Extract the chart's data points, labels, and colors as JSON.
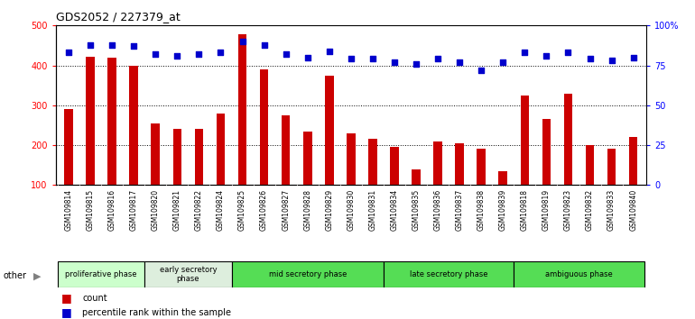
{
  "title": "GDS2052 / 227379_at",
  "samples": [
    "GSM109814",
    "GSM109815",
    "GSM109816",
    "GSM109817",
    "GSM109820",
    "GSM109821",
    "GSM109822",
    "GSM109824",
    "GSM109825",
    "GSM109826",
    "GSM109827",
    "GSM109828",
    "GSM109829",
    "GSM109830",
    "GSM109831",
    "GSM109834",
    "GSM109835",
    "GSM109836",
    "GSM109837",
    "GSM109838",
    "GSM109839",
    "GSM109818",
    "GSM109819",
    "GSM109823",
    "GSM109832",
    "GSM109833",
    "GSM109840"
  ],
  "counts": [
    290,
    422,
    420,
    400,
    255,
    240,
    240,
    280,
    478,
    390,
    275,
    235,
    375,
    230,
    215,
    195,
    140,
    210,
    205,
    190,
    135,
    325,
    265,
    330,
    200,
    190,
    220
  ],
  "percentiles": [
    83,
    88,
    88,
    87,
    82,
    81,
    82,
    83,
    90,
    88,
    82,
    80,
    84,
    79,
    79,
    77,
    76,
    79,
    77,
    72,
    77,
    83,
    81,
    83,
    79,
    78,
    80
  ],
  "phases": [
    {
      "label": "proliferative phase",
      "start": 0,
      "end": 4,
      "color": "#ccffcc"
    },
    {
      "label": "early secretory\nphase",
      "start": 4,
      "end": 8,
      "color": "#ddeedd"
    },
    {
      "label": "mid secretory phase",
      "start": 8,
      "end": 15,
      "color": "#55dd55"
    },
    {
      "label": "late secretory phase",
      "start": 15,
      "end": 21,
      "color": "#55dd55"
    },
    {
      "label": "ambiguous phase",
      "start": 21,
      "end": 27,
      "color": "#55dd55"
    }
  ],
  "bar_color": "#cc0000",
  "dot_color": "#0000cc",
  "ylim_left": [
    100,
    500
  ],
  "ylim_right": [
    0,
    100
  ],
  "yticks_left": [
    100,
    200,
    300,
    400,
    500
  ],
  "yticks_right": [
    0,
    25,
    50,
    75,
    100
  ],
  "ytick_labels_right": [
    "0",
    "25",
    "50",
    "75",
    "100%"
  ],
  "grid_color": "#000000"
}
